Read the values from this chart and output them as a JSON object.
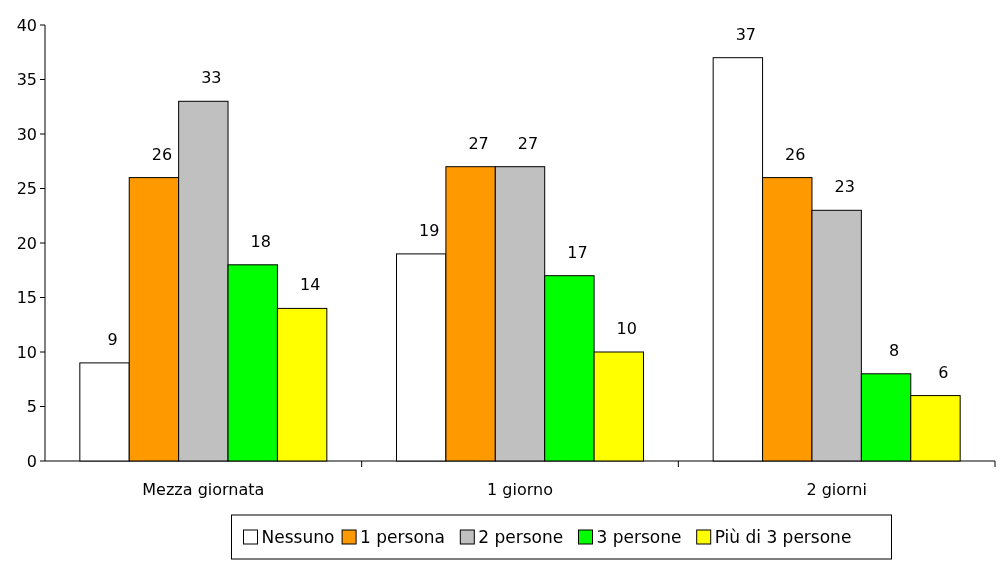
{
  "chart_data": {
    "type": "bar",
    "categories": [
      "Mezza giornata",
      "1 giorno",
      "2 giorni"
    ],
    "series": [
      {
        "name": "Nessuno",
        "color": "#ffffff",
        "values": [
          9,
          19,
          37
        ]
      },
      {
        "name": "1 persona",
        "color": "#ff9900",
        "values": [
          26,
          27,
          26
        ]
      },
      {
        "name": "2 persone",
        "color": "#c0c0c0",
        "values": [
          33,
          27,
          23
        ]
      },
      {
        "name": "3 persone",
        "color": "#00ff00",
        "values": [
          18,
          17,
          8
        ]
      },
      {
        "name": "Più di 3 persone",
        "color": "#ffff00",
        "values": [
          14,
          10,
          6
        ]
      }
    ],
    "ylim": [
      0,
      40
    ],
    "yticks": [
      0,
      5,
      10,
      15,
      20,
      25,
      30,
      35,
      40
    ],
    "data_labels": true,
    "legend": "bottom",
    "grid": false
  }
}
